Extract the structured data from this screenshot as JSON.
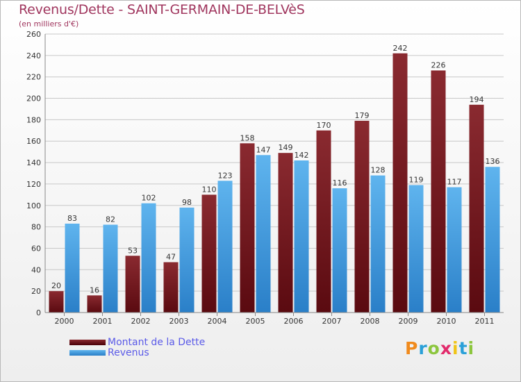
{
  "title": "Revenus/Dette - SAINT-GERMAIN-DE-BELVèS",
  "subtitle": "(en milliers d'€)",
  "logo": {
    "letters": [
      "P",
      "r",
      "o",
      "x",
      "i",
      "t",
      "i"
    ],
    "colors": [
      "#f08a1c",
      "#2aa0d8",
      "#8cc63e",
      "#e22b6c",
      "#f0c419",
      "#2aa0d8",
      "#8cc63e"
    ]
  },
  "chart_data": {
    "type": "bar",
    "title": "Revenus/Dette - SAINT-GERMAIN-DE-BELVèS",
    "ylabel": "(en milliers d'€)",
    "categories": [
      "2000",
      "2001",
      "2002",
      "2003",
      "2004",
      "2005",
      "2006",
      "2007",
      "2008",
      "2009",
      "2010",
      "2011"
    ],
    "series": [
      {
        "name": "Montant de la Dette",
        "color": "#7b1a22",
        "values": [
          20,
          16,
          53,
          47,
          110,
          158,
          149,
          170,
          179,
          242,
          226,
          194
        ]
      },
      {
        "name": "Revenus",
        "color": "#3f9de0",
        "values": [
          83,
          82,
          102,
          98,
          123,
          147,
          142,
          116,
          128,
          119,
          117,
          136
        ]
      }
    ],
    "ylim": [
      0,
      260
    ],
    "yticks": [
      0,
      20,
      40,
      60,
      80,
      100,
      120,
      140,
      160,
      180,
      200,
      220,
      240,
      260
    ],
    "grid": true,
    "legend": "bottom-left"
  }
}
